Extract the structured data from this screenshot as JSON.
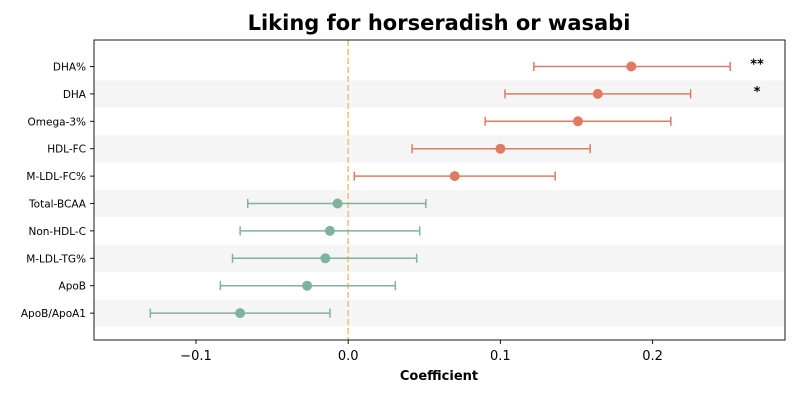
{
  "chart_data": {
    "type": "forest",
    "title": "Liking for horseradish or wasabi",
    "xlabel": "Coefficient",
    "ylabel": "",
    "xlim": [
      -0.167,
      0.287
    ],
    "xticks": [
      -0.1,
      0.0,
      0.1,
      0.2
    ],
    "xtick_labels": [
      "−0.1",
      "0.0",
      "0.1",
      "0.2"
    ],
    "reference_line": 0.0,
    "reference_line_color": "#f0c27a",
    "positive_color": "#e07b62",
    "negative_color": "#7fb39c",
    "band_color": "#f5f5f5",
    "rows": [
      {
        "label": "DHA%",
        "estimate": 0.186,
        "ci_low": 0.122,
        "ci_high": 0.251,
        "significance": "**"
      },
      {
        "label": "DHA",
        "estimate": 0.164,
        "ci_low": 0.103,
        "ci_high": 0.225,
        "significance": "*"
      },
      {
        "label": "Omega-3%",
        "estimate": 0.151,
        "ci_low": 0.09,
        "ci_high": 0.212,
        "significance": ""
      },
      {
        "label": "HDL-FC",
        "estimate": 0.1,
        "ci_low": 0.042,
        "ci_high": 0.159,
        "significance": ""
      },
      {
        "label": "M-LDL-FC%",
        "estimate": 0.07,
        "ci_low": 0.004,
        "ci_high": 0.136,
        "significance": ""
      },
      {
        "label": "Total-BCAA",
        "estimate": -0.007,
        "ci_low": -0.066,
        "ci_high": 0.051,
        "significance": ""
      },
      {
        "label": "Non-HDL-C",
        "estimate": -0.012,
        "ci_low": -0.071,
        "ci_high": 0.047,
        "significance": ""
      },
      {
        "label": "M-LDL-TG%",
        "estimate": -0.015,
        "ci_low": -0.076,
        "ci_high": 0.045,
        "significance": ""
      },
      {
        "label": "ApoB",
        "estimate": -0.027,
        "ci_low": -0.084,
        "ci_high": 0.031,
        "significance": ""
      },
      {
        "label": "ApoB/ApoA1",
        "estimate": -0.071,
        "ci_low": -0.13,
        "ci_high": -0.012,
        "significance": ""
      }
    ]
  }
}
